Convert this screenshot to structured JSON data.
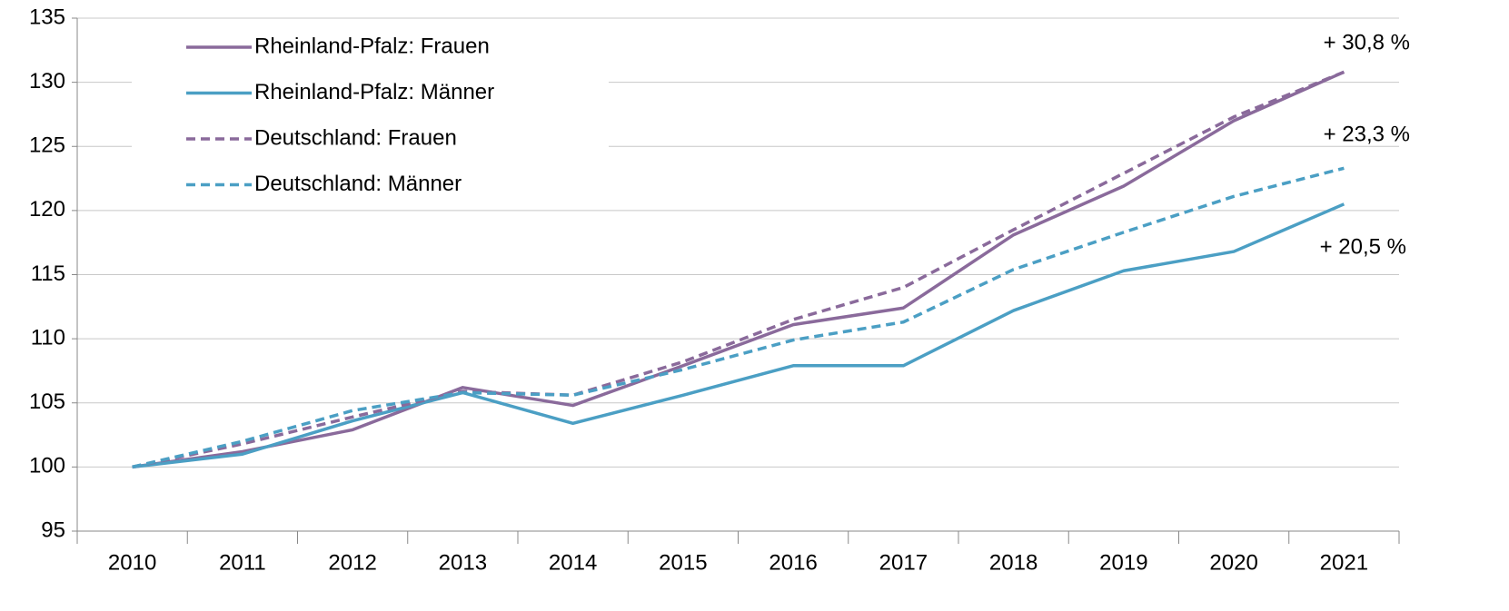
{
  "chart_data": {
    "type": "line",
    "categories": [
      "2010",
      "2011",
      "2012",
      "2013",
      "2014",
      "2015",
      "2016",
      "2017",
      "2018",
      "2019",
      "2020",
      "2021"
    ],
    "series": [
      {
        "name": "Rheinland-Pfalz: Frauen",
        "color": "#8a6a9b",
        "dashed": false,
        "values": [
          100,
          101.2,
          102.9,
          106.2,
          104.8,
          107.9,
          111.1,
          112.4,
          118.1,
          121.9,
          127.0,
          130.8
        ]
      },
      {
        "name": "Rheinland-Pfalz: Männer",
        "color": "#4b9fc4",
        "dashed": false,
        "values": [
          100,
          101.0,
          103.6,
          105.8,
          103.4,
          105.6,
          107.9,
          107.9,
          112.2,
          115.3,
          116.8,
          120.5
        ]
      },
      {
        "name": "Deutschland: Frauen",
        "color": "#8a6a9b",
        "dashed": true,
        "values": [
          100,
          101.8,
          103.9,
          105.9,
          105.6,
          108.2,
          111.5,
          114.0,
          118.5,
          122.9,
          127.3,
          130.8
        ]
      },
      {
        "name": "Deutschland: Männer",
        "color": "#4b9fc4",
        "dashed": true,
        "values": [
          100,
          102.0,
          104.4,
          105.8,
          105.6,
          107.6,
          109.9,
          111.3,
          115.4,
          118.3,
          121.1,
          123.3
        ]
      }
    ],
    "annotations": [
      "+ 30,8 %",
      "+ 23,3 %",
      "+ 20,5 %"
    ],
    "ylim": [
      95,
      135
    ],
    "yticks": [
      95,
      100,
      105,
      110,
      115,
      120,
      125,
      130,
      135
    ],
    "grid": true,
    "legend": "upper left"
  }
}
